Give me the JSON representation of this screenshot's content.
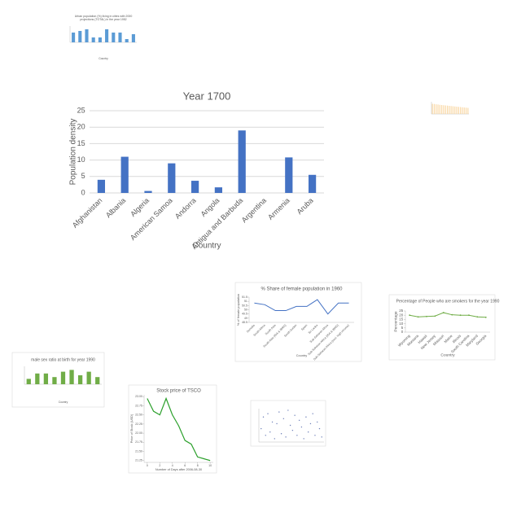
{
  "chart_data": [
    {
      "type": "bar",
      "title": [
        "Urban population (%) living in cities with 2000",
        "projections (TOTAL) in the year 1952"
      ],
      "values": [
        6,
        7,
        8,
        3,
        3,
        8,
        6,
        6,
        2,
        5
      ],
      "color": "#5b9bd5",
      "ylim": [
        0,
        10
      ],
      "xlabel": "Country"
    },
    {
      "type": "bar",
      "title": "Year 1700",
      "categories": [
        "Afghanistan",
        "Albania",
        "Algeria",
        "American Samoa",
        "Andorra",
        "Angola",
        "Antigua and Barbuda",
        "Argentina",
        "Armenia",
        "Aruba"
      ],
      "values": [
        4,
        11,
        0.6,
        9,
        3.7,
        1.7,
        19,
        0,
        10.8,
        5.5
      ],
      "color": "#4472c4",
      "ylim": [
        0,
        25
      ],
      "yticks": [
        0,
        5,
        10,
        15,
        20,
        25
      ],
      "grid": true,
      "xlabel": "Country",
      "ylabel": "Population density"
    },
    {
      "type": "bar",
      "values": [
        10,
        9.8,
        9.5,
        9.3,
        9,
        8.8,
        8.6,
        8.4,
        8.2,
        8,
        7.8,
        7.6,
        7.4,
        7.2,
        7,
        6.8,
        6.6,
        6.4,
        6.2,
        6
      ],
      "color": "#f9d8a4",
      "ylim": [
        0,
        12
      ]
    },
    {
      "type": "line",
      "title": "% Share of female population in 1960",
      "categories": [
        "Somalia",
        "South Africa",
        "South Asia",
        "South Asia (IDA & IBRD)",
        "South Sudan",
        "Spain",
        "Sri Lanka",
        "Sub-Saharan Africa",
        "Sub-Saharan Africa (IDA & IBRD)",
        "Sub-Saharan Africa (excl. high income)"
      ],
      "series": [
        {
          "name": "% Share of female population",
          "color": "#4472c4",
          "values": [
            50.8,
            50.6,
            49.9,
            49.9,
            50.4,
            50.4,
            51.2,
            49.5,
            50.8,
            50.8
          ]
        }
      ],
      "ylim": [
        48.5,
        51.5
      ],
      "yticks": [
        48.5,
        49,
        49.5,
        50,
        50.5,
        51,
        51.5
      ],
      "xlabel": "Country",
      "ylabel": "% of female population"
    },
    {
      "type": "line",
      "title": "Percentage of People who are smokers for the year 1990",
      "categories": [
        "Wyoming",
        "Montana",
        "Hawaii",
        "New Jersey",
        "Missouri",
        "Maine",
        "Illinois",
        "South Carolina",
        "Maryland",
        "Georgia"
      ],
      "series": [
        {
          "name": "Percentage",
          "color": "#70ad47",
          "values": [
            20,
            18,
            18.5,
            19,
            23,
            20.5,
            20,
            20,
            18,
            17.5
          ]
        }
      ],
      "ylim": [
        0,
        25
      ],
      "yticks": [
        0,
        5,
        10,
        15,
        20,
        25
      ],
      "xlabel": "Country",
      "ylabel": "Percentage"
    },
    {
      "type": "bar",
      "title": "male sex ratio at birth for year 1990",
      "values": [
        1.03,
        1.06,
        1.06,
        1.04,
        1.07,
        1.08,
        1.05,
        1.07,
        1.04
      ],
      "color": "#70ad47",
      "ylim": [
        1,
        1.1
      ],
      "xlabel": "Country"
    },
    {
      "type": "line",
      "title": "Stock price of TSCO",
      "x": [
        0,
        1,
        2,
        3,
        4,
        5,
        6,
        7,
        8,
        9,
        10
      ],
      "series": [
        {
          "name": "TSCO",
          "color": "#2ca02c",
          "values": [
            22.95,
            22.6,
            22.5,
            22.95,
            22.5,
            22.2,
            21.8,
            21.7,
            21.35,
            21.3,
            21.25
          ]
        }
      ],
      "xlim": [
        -0.5,
        10.5
      ],
      "xticks": [
        0,
        2,
        4,
        6,
        8,
        10
      ],
      "ylim": [
        21.2,
        23.05
      ],
      "yticks": [
        {
          "value": 21.25,
          "label": "21.25"
        },
        {
          "value": 21.5,
          "label": "21.50"
        },
        {
          "value": 21.75,
          "label": "21.75"
        },
        {
          "value": 22,
          "label": "22.00"
        },
        {
          "value": 22.25,
          "label": "22.25"
        },
        {
          "value": 22.5,
          "label": "22.50"
        },
        {
          "value": 22.75,
          "label": "22.75"
        },
        {
          "value": 23,
          "label": "23.00"
        }
      ],
      "xlabel": "Number of Days after 2006-08-30",
      "ylabel": "Price of Stock (USD)"
    },
    {
      "type": "scatter",
      "x": [
        1,
        2,
        3,
        4,
        5,
        6,
        7,
        8,
        9,
        10,
        11,
        12,
        13,
        14,
        15,
        16,
        17,
        18,
        19,
        20,
        21,
        22,
        23,
        24,
        25,
        26,
        27,
        28
      ],
      "values": [
        40,
        75,
        20,
        85,
        30,
        60,
        10,
        55,
        90,
        25,
        70,
        15,
        95,
        50,
        35,
        80,
        20,
        65,
        45,
        10,
        75,
        30,
        55,
        85,
        20,
        60,
        40,
        15
      ],
      "color": "#6c7fb8",
      "xlim": [
        0,
        29
      ],
      "ylim": [
        0,
        100
      ]
    }
  ]
}
